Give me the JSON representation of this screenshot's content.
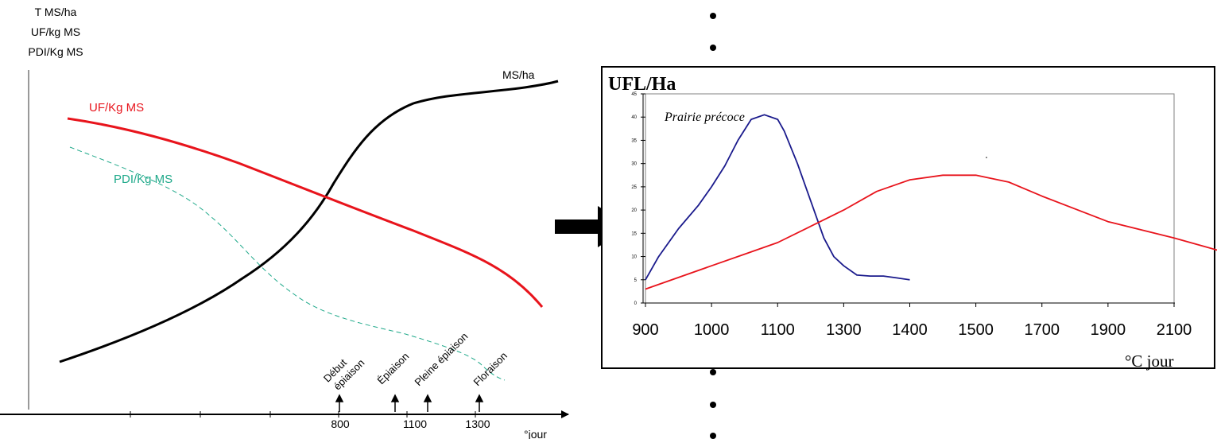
{
  "left_chart": {
    "y_labels": [
      "T MS/ha",
      "UF/kg MS",
      "PDI/Kg MS"
    ],
    "x_unit": "°jour",
    "x_ticks": [
      "800",
      "1100",
      "1300"
    ],
    "series_labels": {
      "ms": "MS/ha",
      "uf": "UF/Kg MS",
      "pdi": "PDI/Kg MS"
    },
    "stages": [
      {
        "lines": [
          "Début",
          "épiaison"
        ],
        "tick": "800"
      },
      {
        "lines": [
          "Épiaison"
        ],
        "tick": ""
      },
      {
        "lines": [
          "Pleine épiaison"
        ],
        "tick": "1100"
      },
      {
        "lines": [
          "Floraison"
        ],
        "tick": "1300"
      }
    ],
    "colors": {
      "ms": "#000000",
      "uf": "#e8141c",
      "pdi": "#1fa98a"
    }
  },
  "chart_data": [
    {
      "type": "line",
      "title": "",
      "xlabel": "°jour",
      "ylabel": "T MS/ha, UF/kg MS, PDI/Kg MS",
      "x_ticks": [
        "800",
        "1100",
        "1300"
      ],
      "grid": false,
      "series": [
        {
          "name": "MS/ha",
          "style": "solid",
          "color": "#000000",
          "values_relative": [
            0.04,
            0.1,
            0.17,
            0.25,
            0.36,
            0.52,
            0.7,
            0.83,
            0.88,
            0.91,
            0.94,
            0.96,
            1.0
          ]
        },
        {
          "name": "UF/Kg MS",
          "style": "solid",
          "color": "#e8141c",
          "values_relative": [
            0.8,
            0.77,
            0.73,
            0.68,
            0.62,
            0.56,
            0.5,
            0.44,
            0.37,
            0.3,
            0.2,
            0.0
          ]
        },
        {
          "name": "PDI/Kg MS",
          "style": "dashed",
          "color": "#1fa98a",
          "values_relative": [
            0.72,
            0.62,
            0.52,
            0.38,
            0.25,
            0.18,
            0.14,
            0.1,
            0.05,
            0.0
          ]
        }
      ]
    },
    {
      "type": "line",
      "title": "",
      "ylabel": "UFL/Ha",
      "xlabel": "°C jour",
      "annotation": "Prairie précoce",
      "categories": [
        "900",
        "1000",
        "1100",
        "1300",
        "1400",
        "1500",
        "1700",
        "1900",
        "2100"
      ],
      "y_ticks": [
        "0",
        "5",
        "10",
        "15",
        "20",
        "25",
        "30",
        "35",
        "40",
        "45"
      ],
      "ylim": [
        0,
        45
      ],
      "grid": false,
      "series": [
        {
          "color": "#1a1a8c",
          "points": [
            [
              0.0,
              5
            ],
            [
              0.2,
              10
            ],
            [
              0.5,
              16
            ],
            [
              0.8,
              21
            ],
            [
              1.0,
              25
            ],
            [
              1.2,
              29.5
            ],
            [
              1.4,
              35
            ],
            [
              1.6,
              39.5
            ],
            [
              1.8,
              40.5
            ],
            [
              2.0,
              39.5
            ],
            [
              2.1,
              37
            ],
            [
              2.3,
              30
            ],
            [
              2.5,
              22
            ],
            [
              2.7,
              14
            ],
            [
              2.85,
              10
            ],
            [
              3.0,
              8
            ],
            [
              3.2,
              6
            ],
            [
              3.4,
              5.8
            ],
            [
              3.6,
              5.8
            ],
            [
              3.8,
              5.4
            ],
            [
              4.0,
              5
            ]
          ]
        },
        {
          "color": "#e8141c",
          "points": [
            [
              0.0,
              3
            ],
            [
              1.0,
              8
            ],
            [
              1.5,
              10.5
            ],
            [
              2.0,
              13
            ],
            [
              2.5,
              16.5
            ],
            [
              3.0,
              20
            ],
            [
              3.5,
              24
            ],
            [
              4.0,
              26.5
            ],
            [
              4.5,
              27.5
            ],
            [
              5.0,
              27.5
            ],
            [
              5.5,
              26
            ],
            [
              6.0,
              23
            ],
            [
              7.0,
              17.5
            ],
            [
              8.0,
              14
            ],
            [
              9.0,
              10
            ]
          ]
        }
      ]
    }
  ],
  "divider": {
    "color": "#000000"
  }
}
